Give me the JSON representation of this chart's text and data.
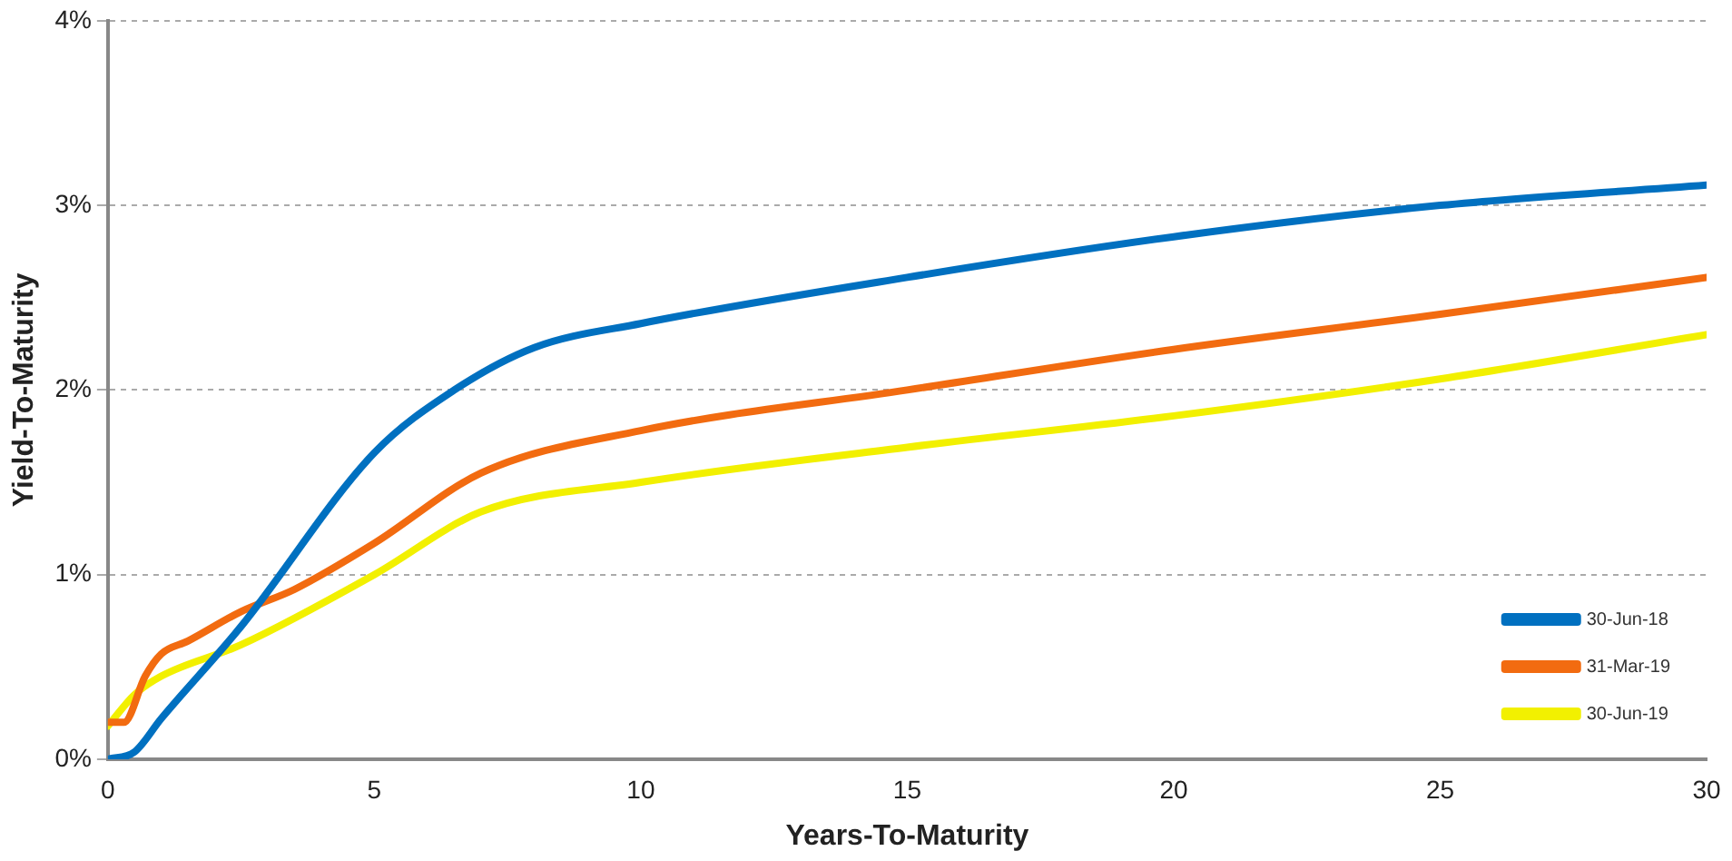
{
  "chart_data": {
    "type": "line",
    "xlabel": "Years-To-Maturity",
    "ylabel": "Yield-To-Maturity",
    "xlim": [
      0,
      30
    ],
    "xticks": [
      0,
      5,
      10,
      15,
      20,
      25,
      30
    ],
    "ylim": [
      0,
      4
    ],
    "yticks": [
      {
        "value": 0,
        "label": "0%"
      },
      {
        "value": 1,
        "label": "1%"
      },
      {
        "value": 2,
        "label": "2%"
      },
      {
        "value": 3,
        "label": "3%"
      },
      {
        "value": 4,
        "label": "4%"
      }
    ],
    "grid": "y",
    "legend": "bottom right",
    "marker": "none",
    "line_style": "solid",
    "series": [
      {
        "name": "30-Jun-18",
        "color": "#0070c0",
        "x": [
          0,
          0.5,
          1,
          2.5,
          5,
          6.5,
          8,
          10,
          15,
          20,
          25,
          30
        ],
        "values": [
          0,
          0.04,
          0.22,
          0.72,
          1.66,
          2.0,
          2.23,
          2.36,
          2.61,
          2.83,
          3.0,
          3.11
        ]
      },
      {
        "name": "31-Mar-19",
        "color": "#f26b10",
        "x": [
          0,
          0.3,
          0.7,
          1,
          1.5,
          2.5,
          3.5,
          5,
          7,
          10,
          15,
          20,
          25,
          30
        ],
        "values": [
          0.2,
          0.2,
          0.45,
          0.57,
          0.64,
          0.8,
          0.92,
          1.17,
          1.55,
          1.78,
          2.0,
          2.22,
          2.41,
          2.61
        ]
      },
      {
        "name": "30-Jun-19",
        "color": "#f2f000",
        "x": [
          0,
          0.5,
          1,
          2.5,
          5,
          7,
          10,
          15,
          20,
          25,
          30
        ],
        "values": [
          0.18,
          0.35,
          0.45,
          0.62,
          1.0,
          1.34,
          1.5,
          1.69,
          1.86,
          2.06,
          2.3
        ]
      }
    ]
  }
}
